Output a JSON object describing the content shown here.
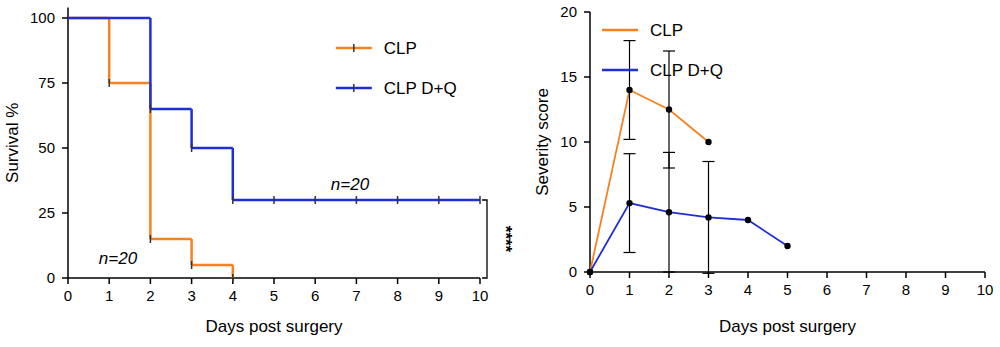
{
  "chart_data": [
    {
      "type": "step",
      "x_label": "Days post surgery",
      "y_label": "Survival %",
      "xlim": [
        0,
        10
      ],
      "xticks": [
        0,
        1,
        2,
        3,
        4,
        5,
        6,
        7,
        8,
        9,
        10
      ],
      "ylim": [
        0,
        104
      ],
      "yticks": [
        0,
        25,
        50,
        75,
        100
      ],
      "marker": "tick",
      "legend": "upper right",
      "series": [
        {
          "name": "CLP",
          "color": "#f5821f",
          "x": [
            0,
            1,
            2,
            3,
            4
          ],
          "values": [
            100,
            75,
            15,
            5,
            0
          ]
        },
        {
          "name": "CLP D+Q",
          "color": "#1f2fd6",
          "x": [
            0,
            2,
            3,
            4,
            5,
            6,
            7,
            8,
            9,
            10
          ],
          "values": [
            100,
            65,
            50,
            30,
            30,
            30,
            30,
            30,
            30,
            30
          ]
        }
      ],
      "annotations": [
        "n=20",
        "n=20",
        "****"
      ]
    },
    {
      "type": "line",
      "x_label": "Days post surgery",
      "y_label": "Severity score",
      "xlim": [
        0,
        10
      ],
      "xticks": [
        0,
        1,
        2,
        3,
        4,
        5,
        6,
        7,
        8,
        9,
        10
      ],
      "ylim": [
        0,
        20
      ],
      "yticks": [
        0,
        5,
        10,
        15,
        20
      ],
      "marker": "circle",
      "legend": "upper left",
      "series": [
        {
          "name": "CLP",
          "color": "#f5821f",
          "x": [
            0,
            1,
            2,
            3
          ],
          "values": [
            0,
            14,
            12.5,
            10
          ],
          "errors": [
            null,
            3.8,
            4.5,
            null
          ]
        },
        {
          "name": "CLP D+Q",
          "color": "#1f2fd6",
          "x": [
            0,
            1,
            2,
            3,
            4,
            5
          ],
          "values": [
            0,
            5.3,
            4.6,
            4.2,
            4,
            2
          ],
          "errors": [
            null,
            3.8,
            4.6,
            4.3,
            null,
            null
          ]
        }
      ]
    }
  ]
}
